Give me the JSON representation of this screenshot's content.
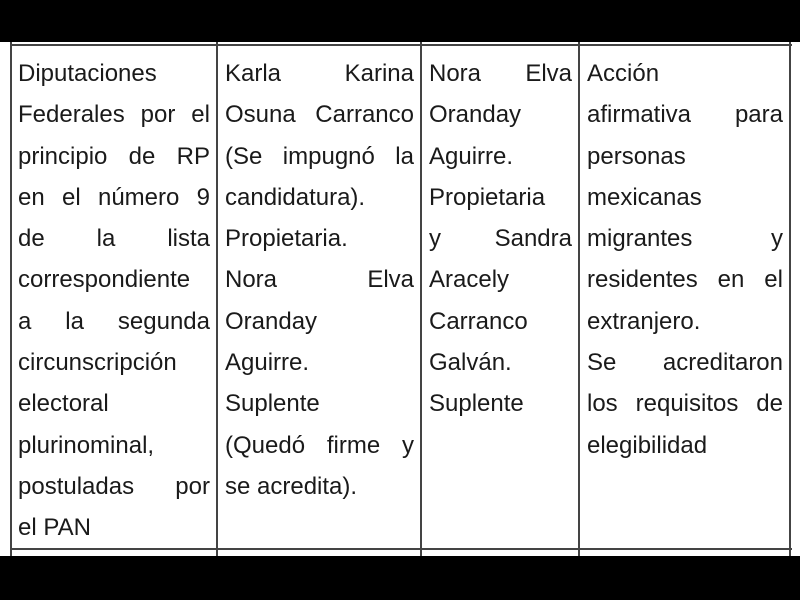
{
  "table": {
    "rows": [
      [
        [
          "Diputaciones",
          "Federales por el",
          "principio de RP",
          "en el número 9",
          "de la lista",
          "correspondiente",
          "a la segunda",
          "circunscripción",
          "electoral",
          "plurinominal,",
          "postuladas por",
          "el PAN"
        ],
        [
          "Karla Karina",
          "Osuna Carranco",
          "(Se impugnó la",
          "candidatura).",
          "Propietaria.",
          "Nora Elva",
          "Oranday",
          "Aguirre.",
          "Suplente",
          "(Quedó firme y",
          "se acredita)."
        ],
        [
          "Nora Elva",
          "Oranday",
          "Aguirre.",
          "Propietaria",
          "y Sandra",
          "Aracely",
          "Carranco",
          "Galván.",
          "Suplente"
        ],
        [
          "Acción",
          "afirmativa para",
          "personas",
          "mexicanas",
          "migrantes y",
          "residentes en el",
          "extranjero.",
          "Se acreditaron",
          "los requisitos de",
          "elegibilidad"
        ]
      ]
    ]
  }
}
